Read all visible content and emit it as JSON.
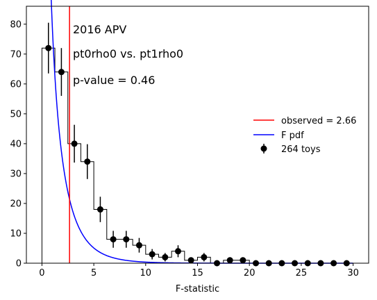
{
  "chart_data": {
    "type": "histogram",
    "xlabel": "F-statistic",
    "ylabel": "",
    "xlim": [
      -1.5,
      31.5
    ],
    "ylim": [
      0,
      86
    ],
    "xticks": [
      0,
      5,
      10,
      15,
      20,
      25,
      30
    ],
    "yticks": [
      0,
      10,
      20,
      30,
      40,
      50,
      60,
      70,
      80
    ],
    "grid": false,
    "annotations": [
      "2016 APV",
      "pt0rho0 vs. pt1rho0",
      "p-value = 0.46"
    ],
    "toys": {
      "name": "264 toys",
      "bin_edges": [
        0,
        1.25,
        2.5,
        3.75,
        5.0,
        6.25,
        7.5,
        8.75,
        10.0,
        11.25,
        12.5,
        13.75,
        15.0,
        16.25,
        17.5,
        18.75,
        20.0,
        21.25,
        22.5,
        23.75,
        25.0,
        26.25,
        27.5,
        28.75,
        30.0
      ],
      "x": [
        0.625,
        1.875,
        3.125,
        4.375,
        5.625,
        6.875,
        8.125,
        9.375,
        10.625,
        11.875,
        13.125,
        14.375,
        15.625,
        16.875,
        18.125,
        19.375,
        20.625,
        21.875,
        23.125,
        24.375,
        25.625,
        26.875,
        28.125,
        29.375
      ],
      "counts": [
        72,
        64,
        40,
        34,
        18,
        8,
        8,
        6,
        3,
        2,
        4,
        1,
        2,
        0,
        1,
        1,
        0,
        0,
        0,
        0,
        0,
        0,
        0,
        0
      ],
      "color": "#000000"
    },
    "observed": {
      "name": "observed = 2.66",
      "value": 2.66,
      "color": "#ff0000"
    },
    "f_pdf": {
      "name": "F pdf",
      "d1": 1,
      "d2": 64,
      "scale": 330,
      "color": "#0000ff"
    },
    "legend_position": "center-right"
  }
}
